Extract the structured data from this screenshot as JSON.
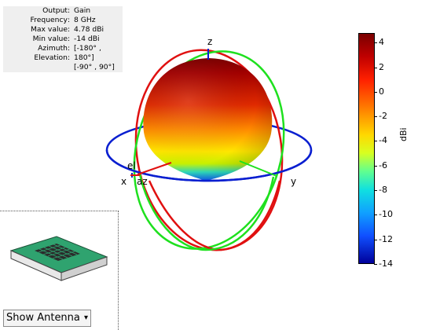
{
  "info": {
    "rows": [
      {
        "key": "Output",
        "value": "Gain"
      },
      {
        "key": "Frequency",
        "value": "8 GHz"
      },
      {
        "key": "Max value",
        "value": "4.78 dBi"
      },
      {
        "key": "Min value",
        "value": "-14 dBi"
      },
      {
        "key": "Azimuth",
        "value": "[-180° ,"
      },
      {
        "key": "Elevation",
        "value": "180°]"
      },
      {
        "key": "",
        "value": "[-90° , 90°]"
      }
    ]
  },
  "axes": {
    "x_label": "x",
    "y_label": "y",
    "z_label": "z",
    "el_label": "el",
    "az_label": "az"
  },
  "colorbar": {
    "ticks": [
      "4",
      "2",
      "0",
      "-2",
      "-4",
      "-6",
      "-8",
      "-10",
      "-12",
      "-14"
    ],
    "unit": "dBi",
    "min": -14,
    "max": 4.78
  },
  "controls": {
    "show_antenna_label": "Show Antenna",
    "dropdown_arrow": "▾"
  },
  "colors": {
    "ring_blue": "#0a1fd0",
    "ring_red": "#e01010",
    "ring_green": "#1ee01e",
    "antenna_green": "#2fa36f"
  }
}
